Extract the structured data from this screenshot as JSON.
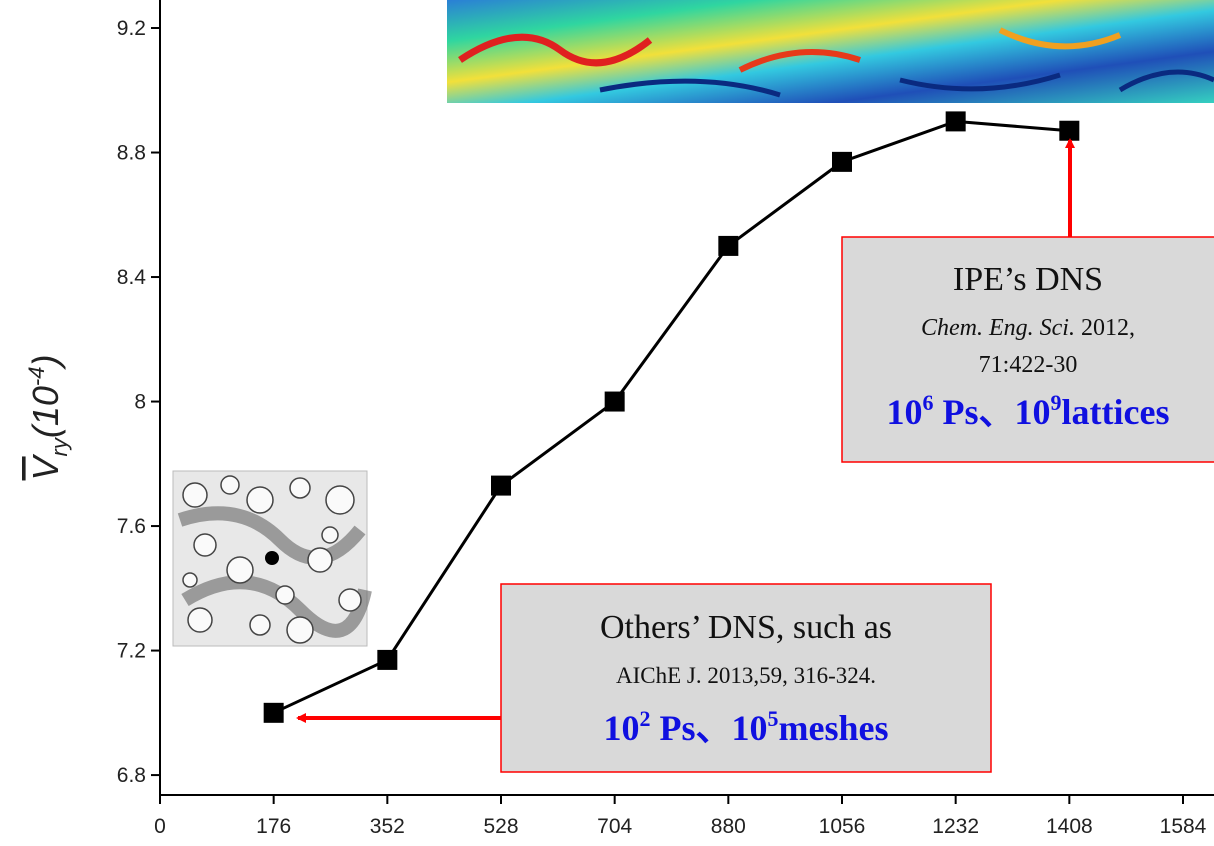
{
  "chart_data": {
    "type": "line",
    "x": [
      176,
      352,
      528,
      704,
      880,
      1056,
      1232,
      1408
    ],
    "series": [
      {
        "color": "#000000",
        "values": [
          7.0,
          7.17,
          7.73,
          8.0,
          8.5,
          8.77,
          8.9,
          8.87
        ]
      }
    ],
    "xlim": [
      0,
      1632
    ],
    "xticks": [
      0,
      176,
      352,
      528,
      704,
      880,
      1056,
      1232,
      1408,
      1584
    ],
    "ylim": [
      6.736,
      9.29
    ],
    "yticks": [
      6.8,
      7.2,
      7.6,
      8.0,
      8.4,
      8.8,
      9.2
    ],
    "y_label": {
      "symbol": "V",
      "subscript": "ry",
      "unit_open": "(10",
      "exponent": "-4",
      "unit_close": ")"
    },
    "annotations": {
      "ipe": {
        "title": "IPE’s DNS",
        "journal": "Chem. Eng. Sci.",
        "year": "2012,",
        "pages": "71:422-30",
        "scale": [
          "10",
          "6",
          " Ps、",
          "10",
          "9",
          "lattices"
        ]
      },
      "others": {
        "title": "Others’ DNS, such as",
        "ref": "AIChE J. 2013,59, 316-324.",
        "scale": [
          "10",
          "2",
          " Ps、",
          "10",
          "5",
          "meshes"
        ]
      }
    }
  }
}
